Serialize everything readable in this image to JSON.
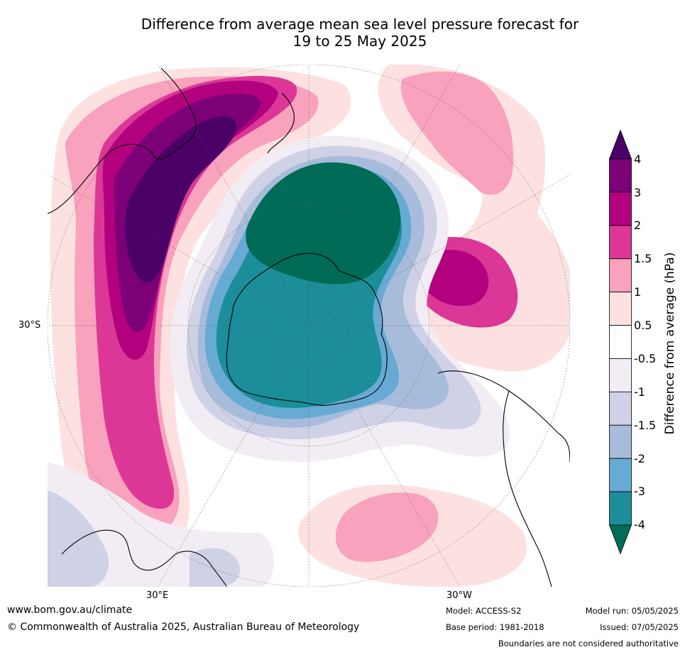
{
  "title_line1": "Difference from average mean sea level pressure forecast for",
  "title_line2": "19 to 25 May 2025",
  "map": {
    "lat_label": "30°S",
    "lon_label_left": "30°E",
    "lon_label_right": "30°W"
  },
  "colorbar": {
    "title": "Difference from average (hPa)",
    "ticks": [
      "4",
      "3",
      "2",
      "1.5",
      "1",
      "0.5",
      "-0.5",
      "-1",
      "-1.5",
      "-2",
      "-3",
      "-4"
    ],
    "colors": [
      "#4b0068",
      "#7c0077",
      "#b2007f",
      "#dc3797",
      "#f8a2bd",
      "#fde1e1",
      "#ffffff",
      "#f2edf4",
      "#cfd1e6",
      "#a7bcdb",
      "#67aad3",
      "#1b8e99",
      "#006b56"
    ]
  },
  "footer": {
    "url": "www.bom.gov.au/climate",
    "copyright": "© Commonwealth of Australia 2025, Australian Bureau of Meteorology",
    "model": "Model: ACCESS-S2",
    "base_period": "Base period: 1981-2018",
    "model_run": "Model run: 05/05/2025",
    "issued": "Issued: 07/05/2025",
    "disclaimer": "Boundaries are not considered authoritative"
  }
}
